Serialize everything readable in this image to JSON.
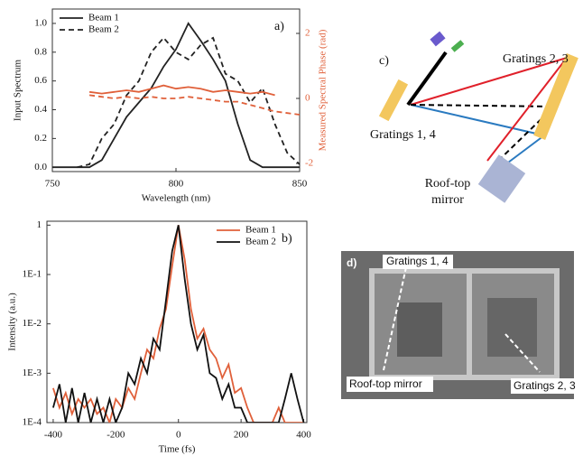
{
  "chart_data": [
    {
      "type": "line",
      "panel_label": "a)",
      "xlabel": "Wavelength (nm)",
      "ylabel": "Input Spectrum",
      "y2label": "Measured Spectral Phase (rad)",
      "x": [
        750,
        755,
        760,
        765,
        770,
        775,
        780,
        785,
        790,
        795,
        800,
        805,
        810,
        815,
        820,
        825,
        830,
        835,
        840,
        845,
        850
      ],
      "series": [
        {
          "name": "Beam 1",
          "color": "#222222",
          "dash": "solid",
          "values": [
            0,
            0,
            0,
            0,
            0.05,
            0.2,
            0.35,
            0.45,
            0.55,
            0.7,
            0.82,
            1.0,
            0.88,
            0.75,
            0.6,
            0.3,
            0.05,
            0,
            0,
            0,
            0
          ]
        },
        {
          "name": "Beam 2",
          "color": "#222222",
          "dash": "dashed",
          "values": [
            null,
            null,
            0,
            0.02,
            0.2,
            0.3,
            0.5,
            0.6,
            0.8,
            0.9,
            0.8,
            0.75,
            0.85,
            0.9,
            0.65,
            0.6,
            0.45,
            0.55,
            0.3,
            0.1,
            0.02
          ]
        },
        {
          "color": "#e0603a",
          "dash": "solid",
          "axis": "y2",
          "values": [
            null,
            null,
            null,
            0.2,
            0.15,
            0.2,
            0.25,
            0.2,
            0.3,
            0.4,
            0.3,
            0.35,
            0.3,
            0.2,
            0.25,
            0.2,
            0.15,
            0.2,
            0.1,
            null,
            null
          ]
        },
        {
          "color": "#e0603a",
          "dash": "dashed",
          "axis": "y2",
          "values": [
            null,
            null,
            null,
            0.1,
            0.05,
            0.0,
            0.05,
            0.0,
            0.05,
            0.0,
            0.0,
            0.05,
            0.0,
            -0.05,
            -0.1,
            -0.1,
            -0.2,
            -0.3,
            -0.4,
            -0.45,
            -0.5
          ]
        }
      ],
      "xlim": [
        750,
        850
      ],
      "xticks": [
        750,
        800,
        850
      ],
      "ylim": [
        -0.03,
        1.1
      ],
      "yticks": [
        {
          "value": 0,
          "label": "0.0"
        },
        0.2,
        0.4,
        0.6,
        0.8,
        {
          "value": 1,
          "label": "1.0"
        }
      ],
      "y2lim": [
        -2.25,
        2.75
      ],
      "y2ticks": [
        -2,
        0,
        2
      ],
      "y2color": "#e0603a",
      "legend": "upper left",
      "yscale": "linear"
    },
    {
      "type": "line",
      "panel_label": "b)",
      "xlabel": "Time (fs)",
      "ylabel": "Intensity (a.u.)",
      "x": [
        -400,
        -380,
        -360,
        -340,
        -320,
        -300,
        -280,
        -260,
        -240,
        -220,
        -200,
        -180,
        -160,
        -140,
        -120,
        -100,
        -80,
        -60,
        -40,
        -20,
        0,
        20,
        40,
        60,
        80,
        100,
        120,
        140,
        160,
        180,
        200,
        220,
        240,
        260,
        280,
        300,
        320,
        340,
        360,
        380,
        400
      ],
      "series": [
        {
          "name": "Beam 1",
          "color": "#e0603a",
          "dash": "solid",
          "values": [
            0.0005,
            0.0002,
            0.0004,
            0.00015,
            0.0003,
            0.0002,
            0.0003,
            0.00015,
            0.0002,
            0.0001,
            0.0003,
            0.0002,
            0.0005,
            0.0003,
            0.001,
            0.003,
            0.002,
            0.008,
            0.02,
            0.15,
            1,
            0.2,
            0.02,
            0.005,
            0.008,
            0.003,
            0.002,
            0.0008,
            0.0015,
            0.0004,
            0.0005,
            0.0002,
            0.0001,
            0.0001,
            0.0001,
            0.0001,
            0.0002,
            0.0001,
            0.0001,
            0.0001,
            0.0001
          ]
        },
        {
          "name": "Beam 2",
          "color": "#111111",
          "dash": "solid",
          "values": [
            0.0002,
            0.0006,
            0.0001,
            0.0005,
            0.0001,
            0.0004,
            0.0001,
            0.0003,
            0.0001,
            0.0003,
            0.0001,
            0.0002,
            0.001,
            0.0006,
            0.002,
            0.001,
            0.005,
            0.003,
            0.03,
            0.3,
            1,
            0.08,
            0.01,
            0.003,
            0.006,
            0.001,
            0.0008,
            0.0003,
            0.0006,
            0.0002,
            0.0002,
            0.0001,
            0.0001,
            0.0001,
            0.0001,
            0.0001,
            0.0001,
            0.0003,
            0.001,
            0.0003,
            0.0001
          ]
        }
      ],
      "xlim": [
        -420,
        410
      ],
      "xticks": [
        -400,
        -200,
        0,
        200,
        400
      ],
      "ylim": [
        0.0001,
        1.2
      ],
      "yticks": [
        {
          "value": 0.0001,
          "label": "1E-4"
        },
        {
          "value": 0.001,
          "label": "1E-3"
        },
        {
          "value": 0.01,
          "label": "1E-2"
        },
        {
          "value": 0.1,
          "label": "1E-1"
        },
        1
      ],
      "legend": "upper right",
      "yscale": "log"
    }
  ],
  "diagram": {
    "label": "c)",
    "gratings_23": "Gratings 2, 3",
    "gratings_14": "Gratings 1, 4",
    "mirror": [
      "Roof-top",
      "mirror"
    ]
  },
  "photo": {
    "label": "d)",
    "labels": [
      "Gratings 1, 4",
      "Roof-top mirror",
      "Gratings 2, 3"
    ]
  }
}
